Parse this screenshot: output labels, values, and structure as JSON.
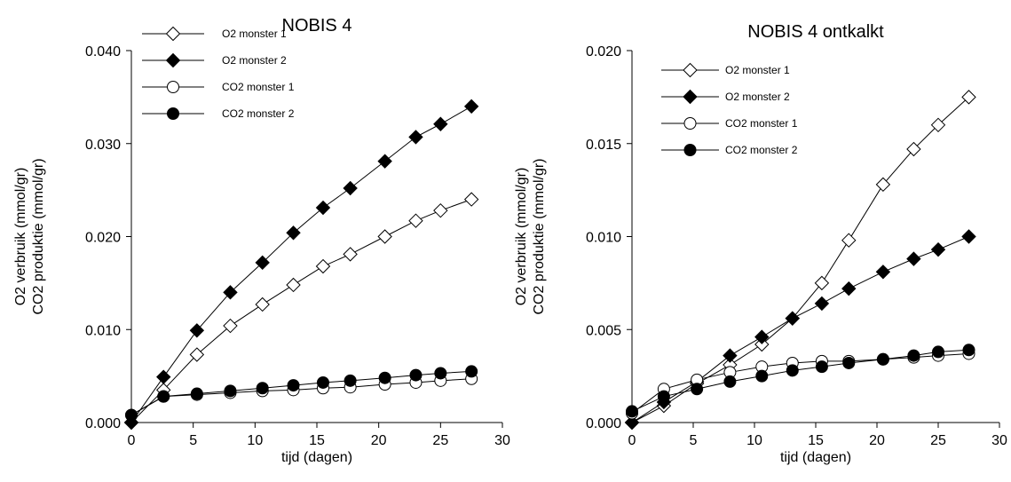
{
  "chart_data": [
    {
      "type": "line",
      "title": "NOBIS 4",
      "xlabel": "tijd (dagen)",
      "ylabel": [
        "O2 verbruik (mmol/gr)",
        "CO2 produktie (mmol/gr)"
      ],
      "xlim": [
        0,
        30
      ],
      "ylim": [
        0,
        0.04
      ],
      "xticks": [
        "0",
        "5",
        "10",
        "15",
        "20",
        "25",
        "30"
      ],
      "yticks": [
        "0.000",
        "0.010",
        "0.020",
        "0.030",
        "0.040"
      ],
      "grid": false,
      "legend_position": "top-left",
      "series": [
        {
          "name": "O2 monster 1",
          "marker": "diamond-open",
          "x": [
            0,
            2.6,
            5.3,
            8,
            10.6,
            13.1,
            15.5,
            17.7,
            20.5,
            23,
            25,
            27.5
          ],
          "y": [
            0,
            0.0035,
            0.0073,
            0.0104,
            0.0127,
            0.0148,
            0.0168,
            0.0181,
            0.02,
            0.0217,
            0.0228,
            0.024
          ]
        },
        {
          "name": "O2 monster 2",
          "marker": "diamond-filled",
          "x": [
            0,
            2.6,
            5.3,
            8,
            10.6,
            13.1,
            15.5,
            17.7,
            20.5,
            23,
            25,
            27.5
          ],
          "y": [
            0,
            0.0049,
            0.0099,
            0.014,
            0.0172,
            0.0204,
            0.0231,
            0.0252,
            0.0281,
            0.0307,
            0.0321,
            0.034
          ]
        },
        {
          "name": "CO2 monster 1",
          "marker": "circle-open",
          "x": [
            0,
            2.6,
            5.3,
            8,
            10.6,
            13.1,
            15.5,
            17.7,
            20.5,
            23,
            25,
            27.5
          ],
          "y": [
            0.0008,
            0.0028,
            0.003,
            0.0032,
            0.0034,
            0.0035,
            0.0037,
            0.0038,
            0.0041,
            0.0043,
            0.0045,
            0.0047
          ]
        },
        {
          "name": "CO2 monster 2",
          "marker": "circle-filled",
          "x": [
            0,
            2.6,
            5.3,
            8,
            10.6,
            13.1,
            15.5,
            17.7,
            20.5,
            23,
            25,
            27.5
          ],
          "y": [
            0.0008,
            0.0028,
            0.0031,
            0.0034,
            0.0037,
            0.004,
            0.0043,
            0.0045,
            0.0048,
            0.0051,
            0.0053,
            0.0055
          ]
        }
      ]
    },
    {
      "type": "line",
      "title": "NOBIS 4 ontkalkt",
      "xlabel": "tijd (dagen)",
      "ylabel": [
        "O2 verbruik (mmol/gr)",
        "CO2 produktie (mmol/gr)"
      ],
      "xlim": [
        0,
        30
      ],
      "ylim": [
        0,
        0.02
      ],
      "xticks": [
        "0",
        "5",
        "10",
        "15",
        "20",
        "25",
        "30"
      ],
      "yticks": [
        "0.000",
        "0.005",
        "0.010",
        "0.015",
        "0.020"
      ],
      "grid": false,
      "legend_position": "top-left",
      "series": [
        {
          "name": "O2 monster 1",
          "marker": "diamond-open",
          "x": [
            0,
            2.6,
            5.3,
            8,
            10.6,
            13.1,
            15.5,
            17.7,
            20.5,
            23,
            25,
            27.5
          ],
          "y": [
            0,
            0.0009,
            0.0021,
            0.0031,
            0.0042,
            0.0056,
            0.0075,
            0.0098,
            0.0128,
            0.0147,
            0.016,
            0.0175
          ]
        },
        {
          "name": "O2 monster 2",
          "marker": "diamond-filled",
          "x": [
            0,
            2.6,
            5.3,
            8,
            10.6,
            13.1,
            15.5,
            17.7,
            20.5,
            23,
            25,
            27.5
          ],
          "y": [
            0,
            0.0011,
            0.0022,
            0.0036,
            0.0046,
            0.0056,
            0.0064,
            0.0072,
            0.0081,
            0.0088,
            0.0093,
            0.01
          ]
        },
        {
          "name": "CO2 monster 1",
          "marker": "circle-open",
          "x": [
            0,
            2.6,
            5.3,
            8,
            10.6,
            13.1,
            15.5,
            17.7,
            20.5,
            23,
            25,
            27.5
          ],
          "y": [
            0.0005,
            0.0018,
            0.0023,
            0.0027,
            0.003,
            0.0032,
            0.0033,
            0.0033,
            0.0034,
            0.0035,
            0.0036,
            0.0037
          ]
        },
        {
          "name": "CO2 monster 2",
          "marker": "circle-filled",
          "x": [
            0,
            2.6,
            5.3,
            8,
            10.6,
            13.1,
            15.5,
            17.7,
            20.5,
            23,
            25,
            27.5
          ],
          "y": [
            0.0006,
            0.0014,
            0.0018,
            0.0022,
            0.0025,
            0.0028,
            0.003,
            0.0032,
            0.0034,
            0.0036,
            0.0038,
            0.0039
          ]
        }
      ]
    }
  ]
}
